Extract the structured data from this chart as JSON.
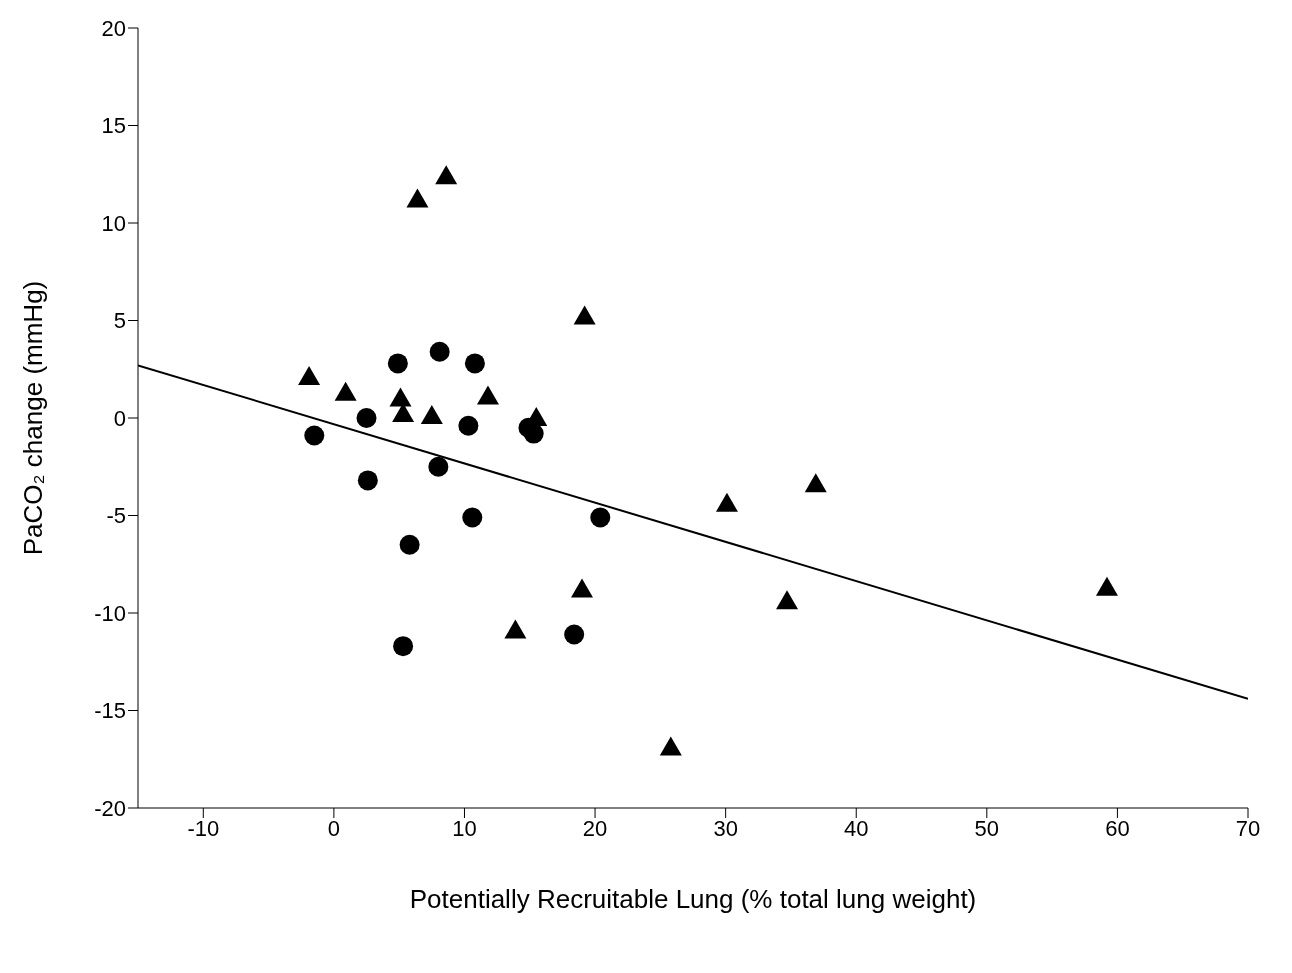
{
  "chart_data": {
    "type": "scatter",
    "xlabel": "Potentially Recruitable Lung (% total lung weight)",
    "ylabel": "PaCO₂ change (mmHg)",
    "xlim": [
      -15,
      70
    ],
    "xticks": [
      -10,
      0,
      10,
      20,
      30,
      40,
      50,
      60,
      70
    ],
    "ylim": [
      -20,
      20
    ],
    "yticks": [
      -20,
      -15,
      -10,
      -5,
      0,
      5,
      10,
      15,
      20
    ],
    "series": [
      {
        "marker": "triangle",
        "color": "#000000",
        "x": [
          -1.9,
          0.9,
          5.1,
          5.3,
          7.5,
          6.4,
          8.6,
          11.8,
          15.5,
          19.2,
          19.0,
          13.9,
          25.8,
          30.1,
          36.9,
          34.7,
          59.2
        ],
        "values": [
          2.1,
          1.3,
          1.0,
          0.2,
          0.1,
          11.2,
          12.4,
          1.1,
          0,
          5.2,
          -8.8,
          -10.9,
          -16.9,
          -4.4,
          -3.4,
          -9.4,
          -8.7
        ]
      },
      {
        "marker": "circle",
        "color": "#000000",
        "x": [
          -1.5,
          2.5,
          2.6,
          4.9,
          8.1,
          10.8,
          10.3,
          14.9,
          15.3,
          8.0,
          10.6,
          5.8,
          5.3,
          18.4,
          20.4
        ],
        "values": [
          -0.9,
          0,
          -3.2,
          2.8,
          3.4,
          2.8,
          -0.4,
          -0.5,
          -0.8,
          -2.5,
          -5.1,
          -6.5,
          -11.7,
          -11.1,
          -5.1
        ]
      },
      {
        "type": "line",
        "marker": "none",
        "color": "#000000",
        "x": [
          -15,
          70
        ],
        "values": [
          2.7,
          -14.4
        ]
      }
    ]
  }
}
